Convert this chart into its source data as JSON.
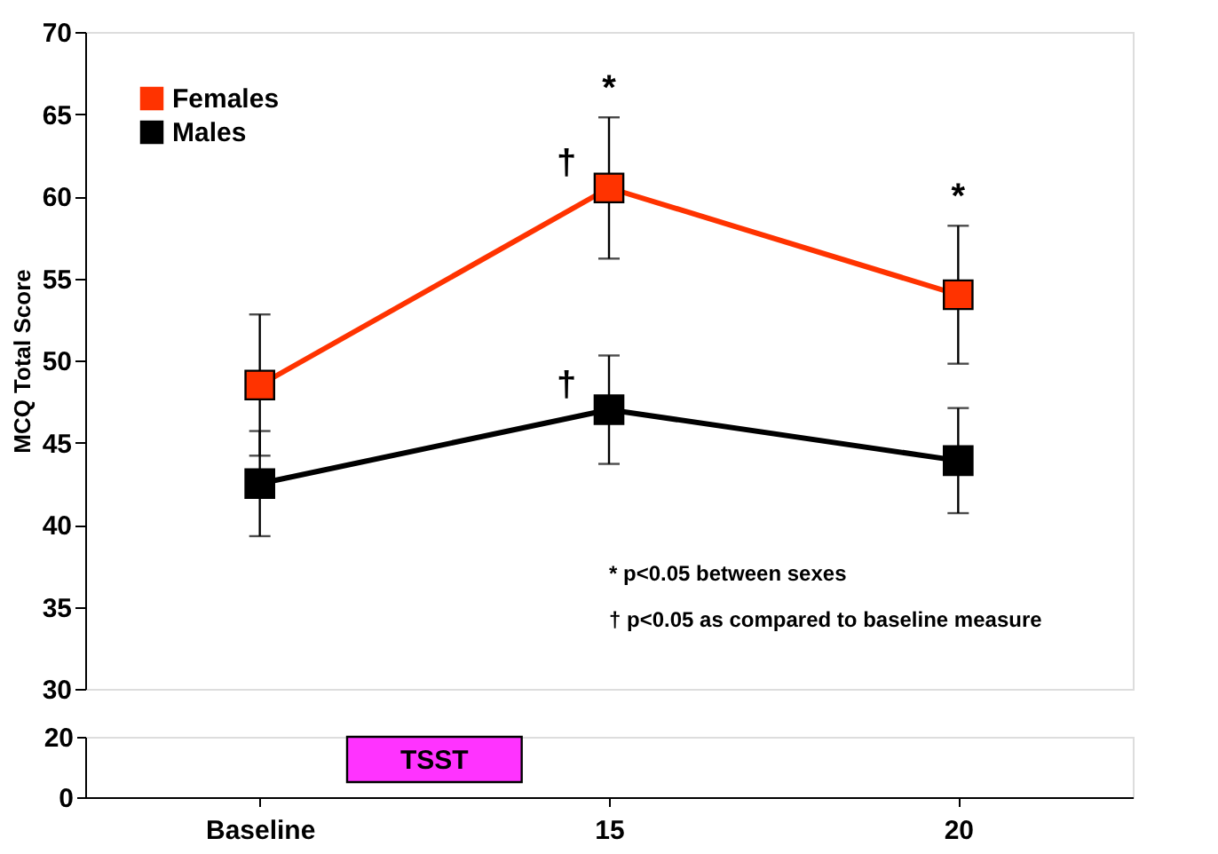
{
  "chart_data": [
    {
      "type": "line",
      "ylabel": "MCQ Total Score",
      "categories": [
        "Baseline",
        "15",
        "20"
      ],
      "series": [
        {
          "name": "Females",
          "color": "#ff3300",
          "values": [
            48.5,
            60.5,
            54.0
          ],
          "errors": [
            4.3,
            4.3,
            4.2
          ]
        },
        {
          "name": "Males",
          "color": "#000000",
          "values": [
            42.5,
            47.0,
            43.9
          ],
          "errors": [
            3.2,
            3.3,
            3.2
          ]
        }
      ],
      "ylim": [
        30,
        70
      ],
      "yticks": [
        30,
        35,
        40,
        45,
        50,
        55,
        60,
        65,
        70
      ],
      "marker": "square",
      "grid": false,
      "legend": "top left",
      "tick_labels": "y",
      "annotations": [
        {
          "text": "*",
          "x": "15",
          "y": 64.8
        },
        {
          "text": "*",
          "x": "20",
          "y": 58.2
        },
        {
          "text": "†",
          "x": "15",
          "y": 60.5
        },
        {
          "text": "†",
          "x": "15",
          "y": 47.0
        },
        "* p<0.05 between sexes",
        "† p<0.05 as compared to baseline measure"
      ]
    },
    {
      "type": "line",
      "categories": [
        "Baseline",
        "15",
        "20"
      ],
      "ylim": [
        0,
        20
      ],
      "yticks": [
        0,
        20
      ],
      "annotations": [
        "TSST"
      ]
    }
  ]
}
